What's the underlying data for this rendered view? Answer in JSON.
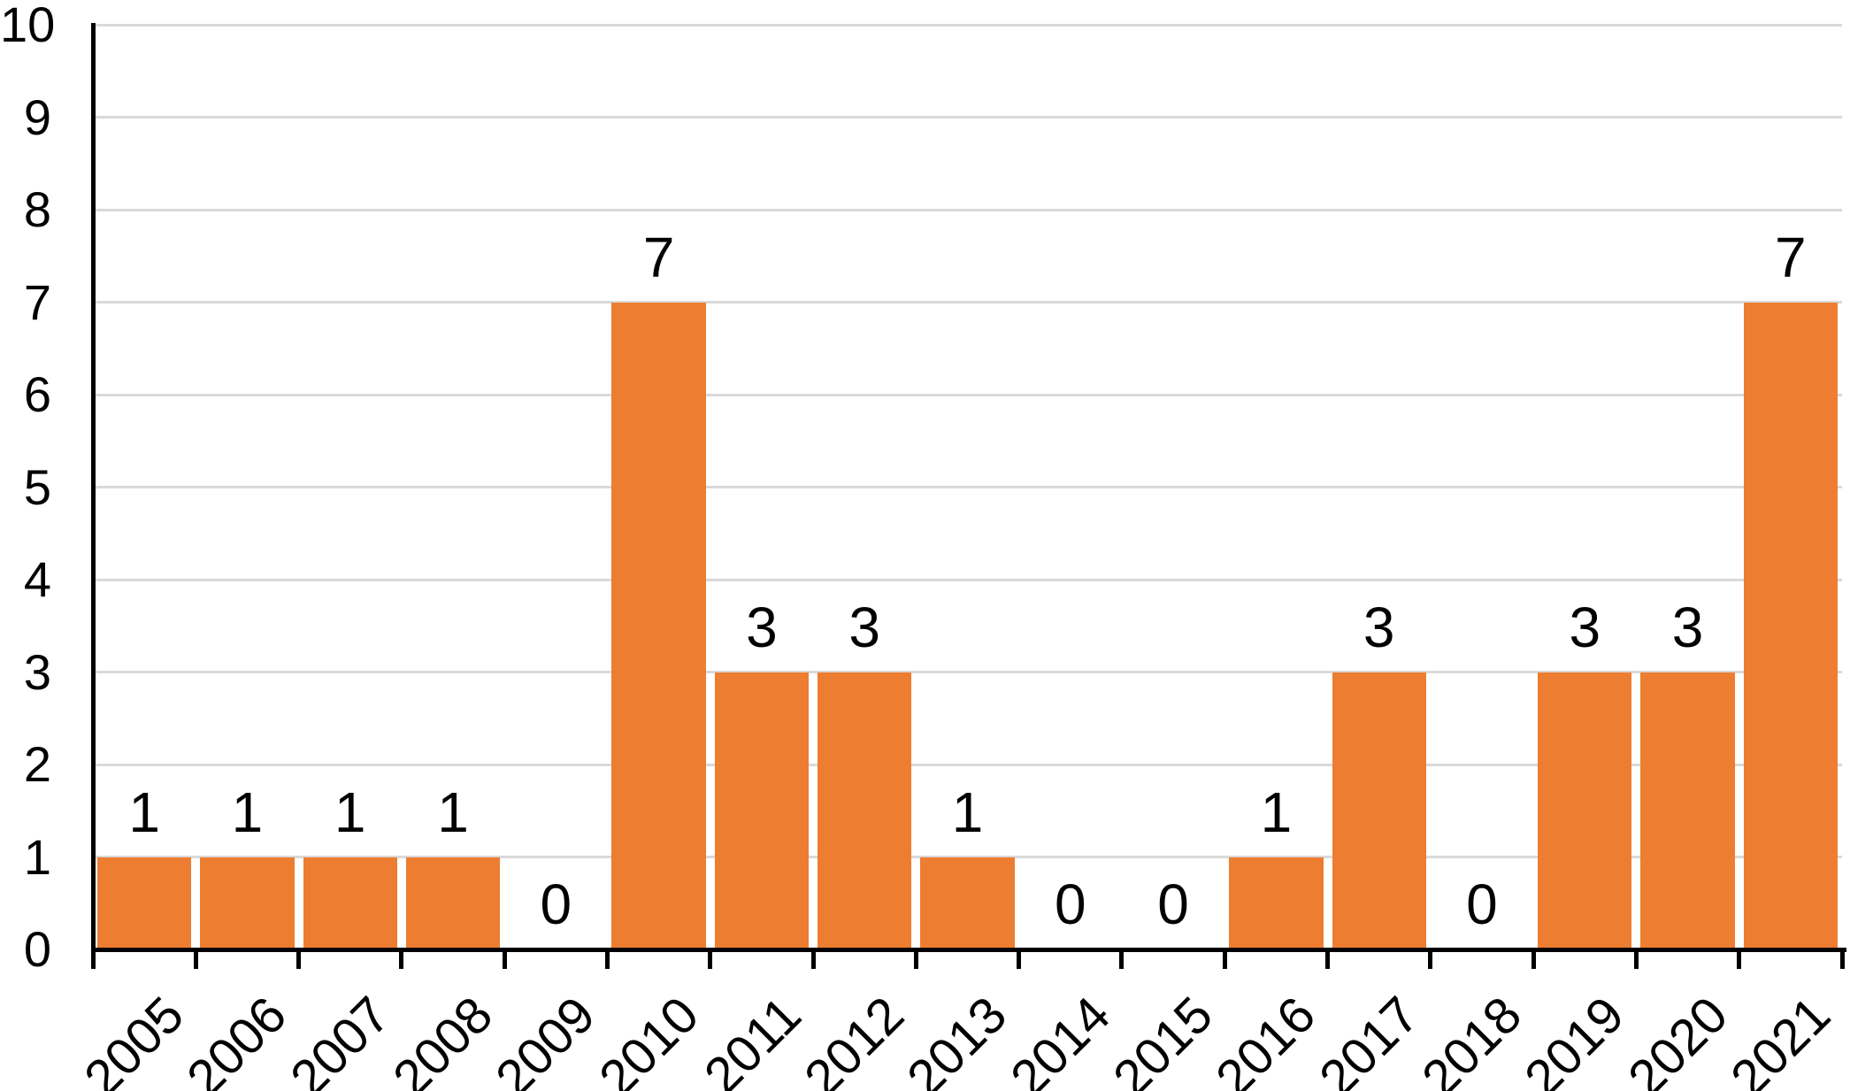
{
  "chart_data": {
    "type": "bar",
    "title": "",
    "xlabel": "",
    "ylabel": "",
    "categories": [
      "2005",
      "2006",
      "2007",
      "2008",
      "2009",
      "2010",
      "2011",
      "2012",
      "2013",
      "2014",
      "2015",
      "2016",
      "2017",
      "2018",
      "2019",
      "2020",
      "2021"
    ],
    "values": [
      1,
      1,
      1,
      1,
      0,
      7,
      3,
      3,
      1,
      0,
      0,
      1,
      3,
      0,
      3,
      3,
      7
    ],
    "data_labels": [
      "1",
      "1",
      "1",
      "1",
      "0",
      "7",
      "3",
      "3",
      "1",
      "0",
      "0",
      "1",
      "3",
      "0",
      "3",
      "3",
      "7"
    ],
    "ylim": [
      0,
      10
    ],
    "ytick_step": 1,
    "yticks": [
      "0",
      "1",
      "2",
      "3",
      "4",
      "5",
      "6",
      "7",
      "8",
      "9",
      "10"
    ],
    "grid": "horizontal-only",
    "legend": "none",
    "x_label_rotation_deg": 45,
    "colors": {
      "bar": "#ED7D31",
      "gridline": "#D9D9D9",
      "axis": "#000000",
      "text": "#000000",
      "background": "#FFFFFF"
    }
  }
}
